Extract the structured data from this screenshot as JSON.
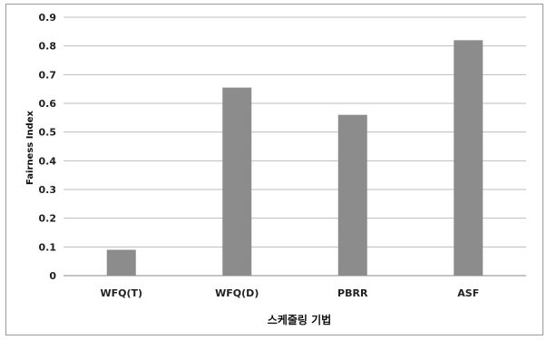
{
  "chart_data": {
    "type": "bar",
    "categories": [
      "WFQ(T)",
      "WFQ(D)",
      "PBRR",
      "ASF"
    ],
    "values": [
      0.09,
      0.655,
      0.56,
      0.82
    ],
    "title": "",
    "xlabel": "스케줄링 기법",
    "ylabel": "Fairness Index",
    "ylim": [
      0,
      0.9
    ],
    "yticks": [
      "0",
      "0.1",
      "0.2",
      "0.3",
      "0.4",
      "0.5",
      "0.6",
      "0.7",
      "0.8",
      "0.9"
    ],
    "grid": true,
    "bar_color": "#8c8c8c",
    "grid_color": "#bdbdbd"
  }
}
